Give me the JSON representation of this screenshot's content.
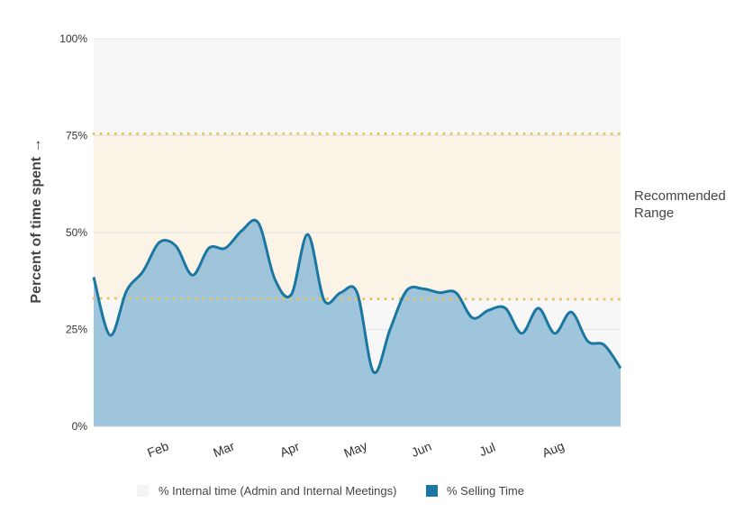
{
  "chart_data": {
    "type": "area",
    "ylabel": "Percent of time spent →",
    "ylim": [
      0,
      100
    ],
    "y_ticks": [
      "0%",
      "25%",
      "50%",
      "75%",
      "100%"
    ],
    "y_tick_values": [
      0,
      25,
      50,
      75,
      100
    ],
    "x_month_labels": [
      "Feb",
      "Mar",
      "Apr",
      "May",
      "Jun",
      "Jul",
      "Aug"
    ],
    "x_month_positions": [
      1.0,
      2.0,
      3.0,
      4.0,
      5.0,
      6.0,
      7.0
    ],
    "xlim": [
      0,
      8
    ],
    "recommended_range": {
      "label_line1": "Recommended",
      "label_line2": "Range",
      "low": 33,
      "high": 75.5
    },
    "legend": {
      "internal": {
        "label": "% Internal time (Admin and Internal Meetings)",
        "color": "#f4f4f4"
      },
      "selling": {
        "label": "% Selling Time",
        "color": "#1a77a1"
      }
    },
    "colors": {
      "area_fill": "#8bbad7",
      "line": "#1a77a1",
      "range_fill": "#faf3e6",
      "range_dots": "#e6c35f",
      "internal_background": "#f7f7f8"
    },
    "series": [
      {
        "x": [
          0.0,
          0.25,
          0.5,
          0.75,
          1.0,
          1.25,
          1.5,
          1.75,
          2.0,
          2.25,
          2.5,
          2.75,
          3.0,
          3.25,
          3.5,
          3.75,
          4.0,
          4.25,
          4.5,
          4.75,
          5.0,
          5.25,
          5.5,
          5.75,
          6.0,
          6.25,
          6.5,
          6.75,
          7.0,
          7.25,
          7.5,
          7.75,
          8.0
        ],
        "values": [
          38.5,
          23.5,
          35,
          40,
          47.5,
          46.5,
          39,
          46,
          46,
          50.5,
          52.5,
          38,
          34,
          49.5,
          32.5,
          34.5,
          34.5,
          14,
          25,
          35,
          35.5,
          34.5,
          34.5,
          28,
          30,
          30.5,
          24,
          30.5,
          24,
          29.5,
          22,
          21,
          15
        ]
      }
    ]
  }
}
